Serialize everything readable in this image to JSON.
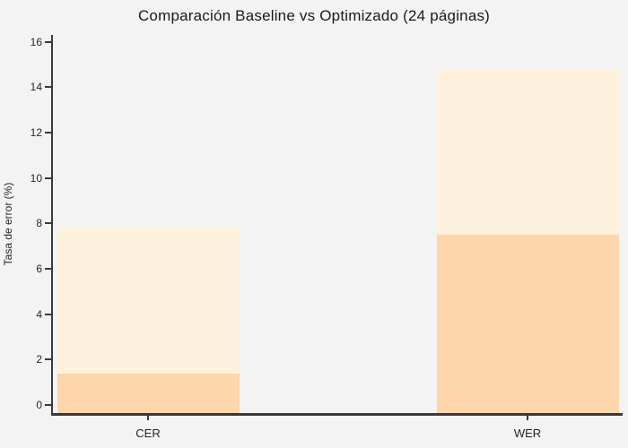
{
  "chart": {
    "title": "Comparación Baseline vs Optimizado (24 páginas)",
    "ylabel": "Tasa de error (%)"
  },
  "chart_data": {
    "type": "bar",
    "title": "Comparación Baseline vs Optimizado (24 páginas)",
    "xlabel": "",
    "ylabel": "Tasa de error (%)",
    "categories": [
      "CER",
      "WER"
    ],
    "series": [
      {
        "name": "Baseline",
        "values": [
          7.8,
          14.8
        ],
        "color": "#fdf0dd"
      },
      {
        "name": "Optimizado",
        "values": [
          1.4,
          7.5
        ],
        "color": "#fdd6ab"
      }
    ],
    "overlay": true,
    "ylim": [
      0,
      16
    ],
    "yticks": [
      0,
      2,
      4,
      6,
      8,
      10,
      12,
      14,
      16
    ],
    "grid": false,
    "legend": "none"
  },
  "colors": {
    "background": "#f3f3f3",
    "spine": "#3a3a3a",
    "tick_text": "#262626",
    "title_text": "#1a1a1a",
    "baseline_bar": "#fdf0dd",
    "optimized_bar": "#fdd6ab"
  }
}
